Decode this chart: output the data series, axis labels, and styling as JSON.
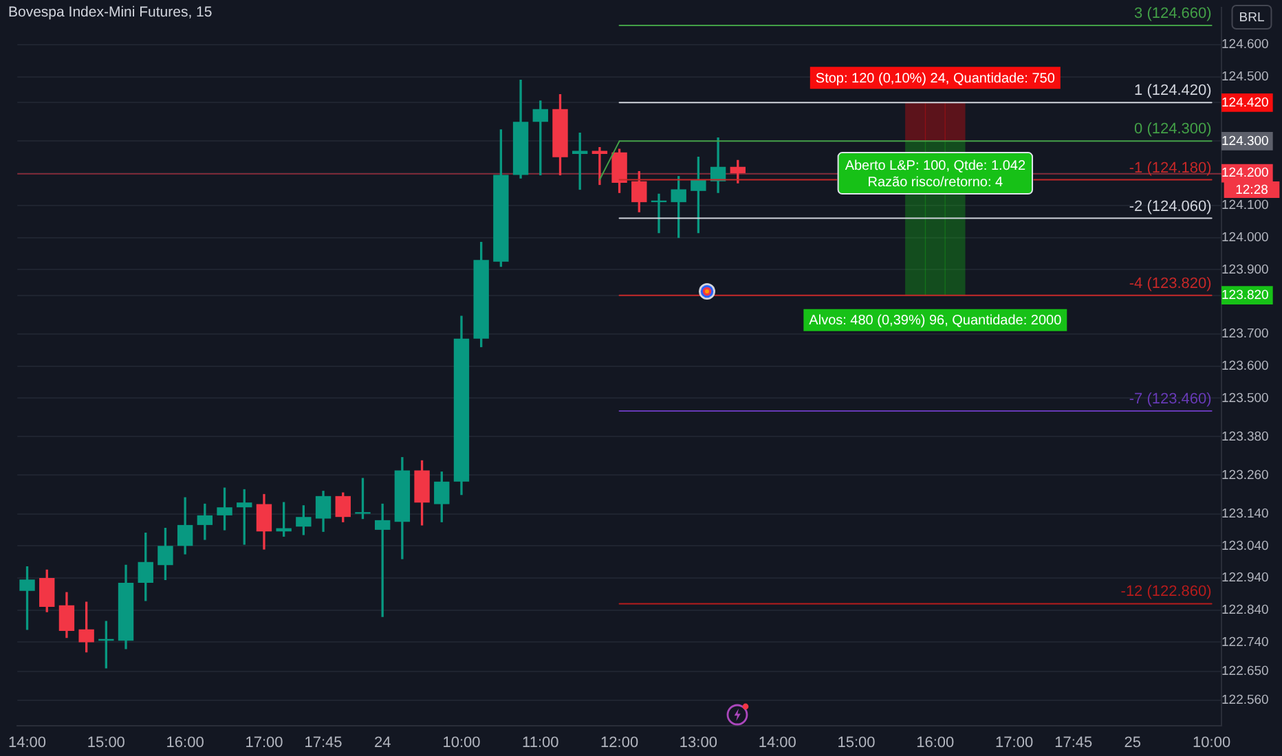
{
  "chart_data": {
    "type": "candlestick",
    "title": "Bovespa Index-Mini Futures, 15",
    "ylabel": "BRL",
    "categories": [
      "14:00",
      null,
      null,
      null,
      "15:00",
      null,
      null,
      null,
      "16:00",
      null,
      null,
      null,
      "17:00",
      null,
      null,
      "17:45",
      null,
      null,
      "24",
      null,
      null,
      null,
      "10:00",
      null,
      null,
      null,
      "11:00",
      null,
      null,
      null,
      "12:00",
      null,
      null,
      null,
      "13:00",
      null,
      null,
      null,
      "14:00",
      null,
      null,
      null,
      "15:00",
      null,
      null,
      null,
      "16:00",
      null,
      null,
      null,
      "17:00",
      null,
      null,
      "17:45",
      null,
      null,
      "25",
      null,
      null,
      null,
      "10:00"
    ],
    "ohlc": [
      [
        122900,
        122975,
        122780,
        122935
      ],
      [
        122940,
        122965,
        122835,
        122850
      ],
      [
        122855,
        122895,
        122755,
        122775
      ],
      [
        122780,
        122865,
        122710,
        122740
      ],
      [
        122745,
        122805,
        122660,
        122750
      ],
      [
        122745,
        122980,
        122720,
        122925
      ],
      [
        122925,
        123080,
        122870,
        122990
      ],
      [
        122980,
        123095,
        122935,
        123040
      ],
      [
        123040,
        123190,
        123015,
        123105
      ],
      [
        123105,
        123170,
        123060,
        123135
      ],
      [
        123135,
        123220,
        123090,
        123160
      ],
      [
        123160,
        123215,
        123045,
        123175
      ],
      [
        123170,
        123200,
        123030,
        123085
      ],
      [
        123085,
        123175,
        123070,
        123095
      ],
      [
        123100,
        123165,
        123075,
        123130
      ],
      [
        123125,
        123210,
        123085,
        123195
      ],
      [
        123195,
        123205,
        123115,
        123130
      ],
      [
        123140,
        123250,
        123125,
        123145
      ],
      [
        123090,
        123170,
        122820,
        123120
      ],
      [
        123115,
        123315,
        123000,
        123275
      ],
      [
        123275,
        123305,
        123105,
        123175
      ],
      [
        123170,
        123270,
        123115,
        123240
      ],
      [
        123240,
        123755,
        123200,
        123685
      ],
      [
        123685,
        123985,
        123660,
        123930
      ],
      [
        123925,
        124335,
        123910,
        124195
      ],
      [
        124195,
        124490,
        124185,
        124360
      ],
      [
        124360,
        124425,
        124195,
        124400
      ],
      [
        124400,
        124445,
        124195,
        124250
      ],
      [
        124260,
        124325,
        124150,
        124270
      ],
      [
        124270,
        124280,
        124165,
        124260
      ],
      [
        124265,
        124275,
        124140,
        124170
      ],
      [
        124175,
        124205,
        124080,
        124110
      ],
      [
        124110,
        124135,
        124015,
        124115
      ],
      [
        124110,
        124190,
        124000,
        124150
      ],
      [
        124145,
        124250,
        124015,
        124180
      ],
      [
        124175,
        124310,
        124140,
        124220
      ],
      [
        124220,
        124240,
        124170,
        124200
      ],
      null,
      null,
      null,
      null,
      null,
      null,
      null,
      null,
      null,
      null,
      null,
      null,
      null,
      null,
      null,
      null,
      null,
      null,
      null,
      null,
      null,
      null,
      null,
      null
    ],
    "colors": [
      "#089981",
      "#f23645",
      "#f23645",
      "#f23645",
      "#089981",
      "#089981",
      "#089981",
      "#089981",
      "#089981",
      "#089981",
      "#089981",
      "#089981",
      "#f23645",
      "#089981",
      "#089981",
      "#089981",
      "#f23645",
      "#089981",
      "#089981",
      "#089981",
      "#f23645",
      "#089981",
      "#089981",
      "#089981",
      "#089981",
      "#089981",
      "#089981",
      "#f23645",
      "#089981",
      "#f23645",
      "#f23645",
      "#f23645",
      "#089981",
      "#089981",
      "#089981",
      "#089981",
      "#f23645",
      null,
      null,
      null,
      null,
      null,
      null,
      null,
      null,
      null,
      null,
      null,
      null,
      null,
      null,
      null,
      null,
      null,
      null,
      null,
      null,
      null,
      null,
      null,
      null
    ],
    "series": [
      {
        "type": "bar",
        "name": "Stop: 120 (0,10%) 24, Quantidade: 750",
        "color": "#f80d0d",
        "base": [
          null,
          null,
          null,
          null,
          null,
          null,
          null,
          null,
          null,
          null,
          null,
          null,
          null,
          null,
          null,
          null,
          null,
          null,
          null,
          null,
          null,
          null,
          null,
          null,
          null,
          null,
          null,
          null,
          null,
          null,
          null,
          null,
          null,
          null,
          null,
          null,
          null,
          null,
          null,
          null,
          null,
          null,
          null,
          null,
          null,
          124300,
          124300,
          124300,
          null,
          null,
          null,
          null,
          null,
          null,
          null,
          null,
          null,
          null,
          null,
          null,
          null
        ],
        "values": [
          null,
          null,
          null,
          null,
          null,
          null,
          null,
          null,
          null,
          null,
          null,
          null,
          null,
          null,
          null,
          null,
          null,
          null,
          null,
          null,
          null,
          null,
          null,
          null,
          null,
          null,
          null,
          null,
          null,
          null,
          null,
          null,
          null,
          null,
          null,
          null,
          null,
          null,
          null,
          null,
          null,
          null,
          null,
          null,
          null,
          120,
          120,
          120,
          null,
          null,
          null,
          null,
          null,
          null,
          null,
          null,
          null,
          null,
          null,
          null,
          null
        ]
      },
      {
        "type": "bar",
        "name": "Alvos: 480 (0,39%) 96, Quantidade: 2000",
        "color": "#17c117",
        "base": [
          null,
          null,
          null,
          null,
          null,
          null,
          null,
          null,
          null,
          null,
          null,
          null,
          null,
          null,
          null,
          null,
          null,
          null,
          null,
          null,
          null,
          null,
          null,
          null,
          null,
          null,
          null,
          null,
          null,
          null,
          null,
          null,
          null,
          null,
          null,
          null,
          null,
          null,
          null,
          null,
          null,
          null,
          null,
          null,
          null,
          123820,
          123820,
          123820,
          null,
          null,
          null,
          null,
          null,
          null,
          null,
          null,
          null,
          null,
          null,
          null,
          null
        ],
        "values": [
          null,
          null,
          null,
          null,
          null,
          null,
          null,
          null,
          null,
          null,
          null,
          null,
          null,
          null,
          null,
          null,
          null,
          null,
          null,
          null,
          null,
          null,
          null,
          null,
          null,
          null,
          null,
          null,
          null,
          null,
          null,
          null,
          null,
          null,
          null,
          null,
          null,
          null,
          null,
          null,
          null,
          null,
          null,
          null,
          null,
          480,
          480,
          480,
          null,
          null,
          null,
          null,
          null,
          null,
          null,
          null,
          null,
          null,
          null,
          null,
          null
        ]
      },
      {
        "type": "line",
        "color": "#43a047",
        "values": [
          null,
          null,
          null,
          null,
          null,
          null,
          null,
          null,
          null,
          null,
          null,
          null,
          null,
          null,
          null,
          null,
          null,
          null,
          null,
          null,
          null,
          null,
          null,
          null,
          null,
          null,
          null,
          null,
          null,
          124180,
          124300,
          null,
          null,
          null,
          null,
          null,
          null,
          null,
          null,
          null,
          null,
          null,
          null,
          null,
          null,
          null,
          null,
          null,
          null,
          null,
          null,
          null,
          null,
          null,
          null,
          null,
          null,
          null,
          null,
          null,
          null
        ]
      },
      {
        "type": "line",
        "name": "3 (124.660)",
        "color": "#43a047",
        "values": [
          null,
          null,
          null,
          null,
          null,
          null,
          null,
          null,
          null,
          null,
          null,
          null,
          null,
          null,
          null,
          null,
          null,
          null,
          null,
          null,
          null,
          null,
          null,
          null,
          null,
          null,
          null,
          null,
          null,
          null,
          124660,
          124660,
          124660,
          124660,
          124660,
          124660,
          124660,
          124660,
          124660,
          124660,
          124660,
          124660,
          124660,
          124660,
          124660,
          124660,
          124660,
          124660,
          124660,
          124660,
          124660,
          124660,
          124660,
          124660,
          124660,
          124660,
          124660,
          124660,
          124660,
          124660,
          124660
        ]
      },
      {
        "type": "line",
        "name": "1 (124.420)",
        "color": "#d1d4dc",
        "values": [
          null,
          null,
          null,
          null,
          null,
          null,
          null,
          null,
          null,
          null,
          null,
          null,
          null,
          null,
          null,
          null,
          null,
          null,
          null,
          null,
          null,
          null,
          null,
          null,
          null,
          null,
          null,
          null,
          null,
          null,
          124420,
          124420,
          124420,
          124420,
          124420,
          124420,
          124420,
          124420,
          124420,
          124420,
          124420,
          124420,
          124420,
          124420,
          124420,
          124420,
          124420,
          124420,
          124420,
          124420,
          124420,
          124420,
          124420,
          124420,
          124420,
          124420,
          124420,
          124420,
          124420,
          124420,
          124420
        ]
      },
      {
        "type": "line",
        "name": "0 (124.300)",
        "color": "#43a047",
        "values": [
          null,
          null,
          null,
          null,
          null,
          null,
          null,
          null,
          null,
          null,
          null,
          null,
          null,
          null,
          null,
          null,
          null,
          null,
          null,
          null,
          null,
          null,
          null,
          null,
          null,
          null,
          null,
          null,
          null,
          null,
          124300,
          124300,
          124300,
          124300,
          124300,
          124300,
          124300,
          124300,
          124300,
          124300,
          124300,
          124300,
          124300,
          124300,
          124300,
          124300,
          124300,
          124300,
          124300,
          124300,
          124300,
          124300,
          124300,
          124300,
          124300,
          124300,
          124300,
          124300,
          124300,
          124300,
          124300
        ]
      },
      {
        "type": "line",
        "name": "-1 (124.180)",
        "color": "#c62828",
        "values": [
          null,
          null,
          null,
          null,
          null,
          null,
          null,
          null,
          null,
          null,
          null,
          null,
          null,
          null,
          null,
          null,
          null,
          null,
          null,
          null,
          null,
          null,
          null,
          null,
          null,
          null,
          null,
          null,
          null,
          null,
          124180,
          124180,
          124180,
          124180,
          124180,
          124180,
          124180,
          124180,
          124180,
          124180,
          124180,
          124180,
          null,
          null,
          null,
          null,
          null,
          null,
          null,
          null,
          null,
          124180,
          124180,
          124180,
          124180,
          124180,
          124180,
          124180,
          124180,
          124180,
          124180
        ]
      },
      {
        "type": "line",
        "name": "-2 (124.060)",
        "color": "#d1d4dc",
        "values": [
          null,
          null,
          null,
          null,
          null,
          null,
          null,
          null,
          null,
          null,
          null,
          null,
          null,
          null,
          null,
          null,
          null,
          null,
          null,
          null,
          null,
          null,
          null,
          null,
          null,
          null,
          null,
          null,
          null,
          null,
          124060,
          124060,
          124060,
          124060,
          124060,
          124060,
          124060,
          124060,
          124060,
          124060,
          124060,
          124060,
          124060,
          124060,
          124060,
          124060,
          124060,
          124060,
          124060,
          124060,
          124060,
          124060,
          124060,
          124060,
          124060,
          124060,
          124060,
          124060,
          124060,
          124060,
          124060
        ]
      },
      {
        "type": "line",
        "name": "-4 (123.820)",
        "color": "#c62828",
        "values": [
          null,
          null,
          null,
          null,
          null,
          null,
          null,
          null,
          null,
          null,
          null,
          null,
          null,
          null,
          null,
          null,
          null,
          null,
          null,
          null,
          null,
          null,
          null,
          null,
          null,
          null,
          null,
          null,
          null,
          null,
          123820,
          123820,
          123820,
          123820,
          123820,
          123820,
          123820,
          123820,
          123820,
          123820,
          123820,
          123820,
          123820,
          123820,
          123820,
          123820,
          123820,
          123820,
          123820,
          123820,
          123820,
          123820,
          123820,
          123820,
          123820,
          123820,
          123820,
          123820,
          123820,
          123820,
          123820
        ]
      },
      {
        "type": "line",
        "name": "-7 (123.460)",
        "color": "#673ab7",
        "values": [
          null,
          null,
          null,
          null,
          null,
          null,
          null,
          null,
          null,
          null,
          null,
          null,
          null,
          null,
          null,
          null,
          null,
          null,
          null,
          null,
          null,
          null,
          null,
          null,
          null,
          null,
          null,
          null,
          null,
          null,
          123460,
          123460,
          123460,
          123460,
          123460,
          123460,
          123460,
          123460,
          123460,
          123460,
          123460,
          123460,
          123460,
          123460,
          123460,
          123460,
          123460,
          123460,
          123460,
          123460,
          123460,
          123460,
          123460,
          123460,
          123460,
          123460,
          123460,
          123460,
          123460,
          123460,
          123460
        ]
      },
      {
        "type": "line",
        "name": "-12 (122.860)",
        "color": "#b71c1c",
        "values": [
          null,
          null,
          null,
          null,
          null,
          null,
          null,
          null,
          null,
          null,
          null,
          null,
          null,
          null,
          null,
          null,
          null,
          null,
          null,
          null,
          null,
          null,
          null,
          null,
          null,
          null,
          null,
          null,
          null,
          null,
          122860,
          122860,
          122860,
          122860,
          122860,
          122860,
          122860,
          122860,
          122860,
          122860,
          122860,
          122860,
          122860,
          122860,
          122860,
          122860,
          122860,
          122860,
          122860,
          122860,
          122860,
          122860,
          122860,
          122860,
          122860,
          122860,
          122860,
          122860,
          122860,
          122860,
          122860
        ]
      }
    ],
    "ref_lines": [
      {
        "axis": "y",
        "value": 124200,
        "color": "#f23645"
      }
    ],
    "annotations": [
      {
        "text": "Aberto L&P: 100, Qtde: 1.042\nRazão risco/retorno: 4",
        "y": 124200
      },
      "12:28"
    ],
    "ylim": [
      122480,
      124715
    ],
    "yticks": [
      {
        "value": 124600,
        "label": "124.600"
      },
      {
        "value": 124500,
        "label": "124.500"
      },
      {
        "value": 124420,
        "label": "124.420"
      },
      {
        "value": 124300,
        "label": "124.300"
      },
      {
        "value": 124200,
        "label": "124.200"
      },
      {
        "value": 124100,
        "label": "124.100"
      },
      {
        "value": 124000,
        "label": "124.000"
      },
      {
        "value": 123900,
        "label": "123.900"
      },
      {
        "value": 123820,
        "label": "123.820"
      },
      {
        "value": 123700,
        "label": "123.700"
      },
      {
        "value": 123600,
        "label": "123.600"
      },
      {
        "value": 123500,
        "label": "123.500"
      },
      {
        "value": 123380,
        "label": "123.380"
      },
      {
        "value": 123260,
        "label": "123.260"
      },
      {
        "value": 123140,
        "label": "123.140"
      },
      {
        "value": 123040,
        "label": "123.040"
      },
      {
        "value": 122940,
        "label": "122.940"
      },
      {
        "value": 122840,
        "label": "122.840"
      },
      {
        "value": 122740,
        "label": "122.740"
      },
      {
        "value": 122650,
        "label": "122.650"
      },
      {
        "value": 122560,
        "label": "122.560"
      }
    ],
    "grid": "y"
  }
}
